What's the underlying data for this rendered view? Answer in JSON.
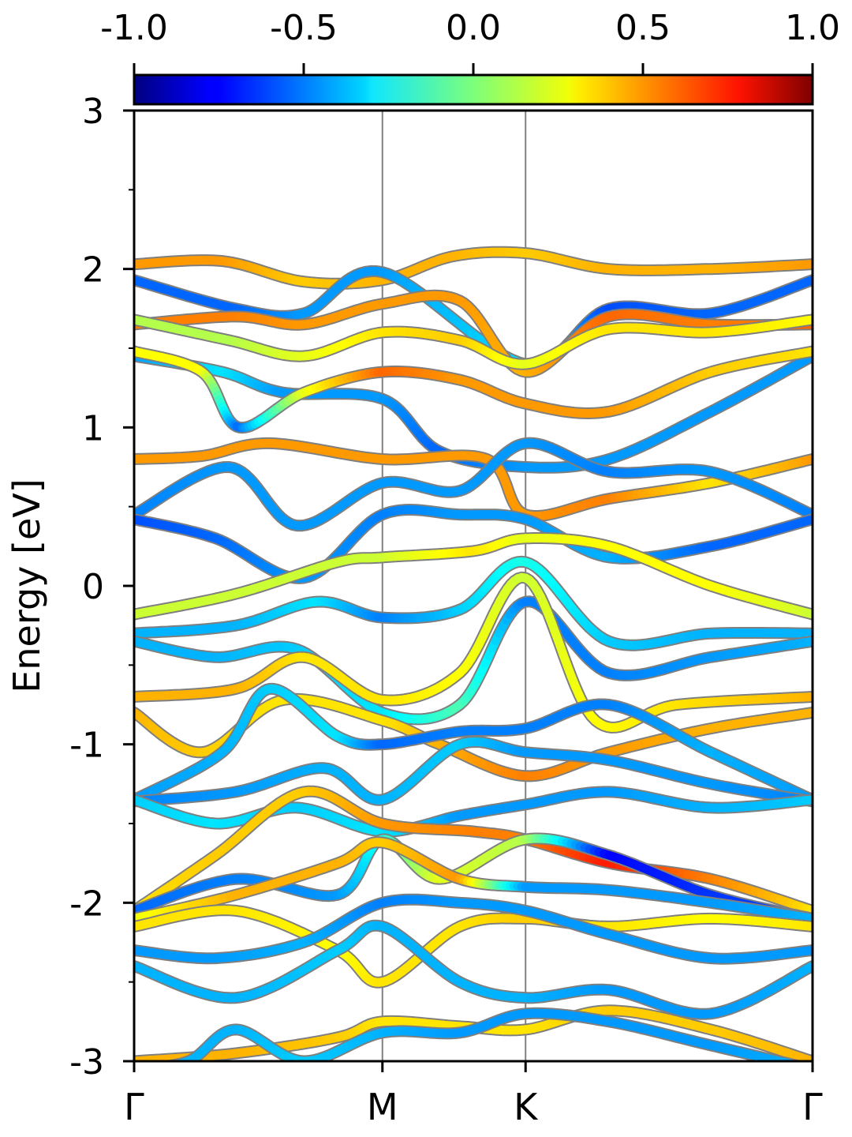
{
  "chart_data": {
    "type": "line",
    "title": "",
    "ylabel": "Energy [eV]",
    "xlabel": "",
    "ylim": [
      -3,
      3
    ],
    "yticks": [
      -3,
      -2,
      -1,
      0,
      1,
      2,
      3
    ],
    "yticks_labels": [
      "-3",
      "-2",
      "-1",
      "0",
      "1",
      "2",
      "3"
    ],
    "kpath": [
      {
        "label": "Γ",
        "pos": 0.0
      },
      {
        "label": "M",
        "pos": 0.366
      },
      {
        "label": "K",
        "pos": 0.577
      },
      {
        "label": "Γ",
        "pos": 1.0
      }
    ],
    "colorbar": {
      "colormap": "jet",
      "range": [
        -1.0,
        1.0
      ],
      "ticks": [
        "-1.0",
        "-0.5",
        "0.0",
        "0.5",
        "1.0"
      ]
    },
    "series": [
      {
        "points": [
          [
            0.0,
            2.03,
            0.45
          ],
          [
            0.13,
            2.05,
            0.45
          ],
          [
            0.25,
            1.92,
            0.35
          ],
          [
            0.366,
            1.93,
            0.4
          ],
          [
            0.47,
            2.08,
            0.4
          ],
          [
            0.577,
            2.1,
            0.35
          ],
          [
            0.7,
            2.0,
            0.4
          ],
          [
            0.85,
            2.0,
            0.4
          ],
          [
            1.0,
            2.03,
            0.45
          ]
        ]
      },
      {
        "points": [
          [
            0.0,
            1.93,
            -0.55
          ],
          [
            0.15,
            1.75,
            -0.55
          ],
          [
            0.25,
            1.72,
            -0.45
          ],
          [
            0.366,
            1.98,
            -0.45
          ],
          [
            0.577,
            1.4,
            -0.3
          ],
          [
            0.7,
            1.75,
            -0.6
          ],
          [
            0.85,
            1.72,
            -0.55
          ],
          [
            1.0,
            1.93,
            -0.55
          ]
        ]
      },
      {
        "points": [
          [
            0.0,
            1.65,
            0.5
          ],
          [
            0.15,
            1.7,
            0.5
          ],
          [
            0.25,
            1.65,
            0.45
          ],
          [
            0.366,
            1.78,
            0.45
          ],
          [
            0.48,
            1.8,
            0.45
          ],
          [
            0.577,
            1.35,
            0.4
          ],
          [
            0.7,
            1.7,
            0.55
          ],
          [
            0.85,
            1.65,
            0.5
          ],
          [
            1.0,
            1.65,
            0.55
          ]
        ]
      },
      {
        "points": [
          [
            0.0,
            1.68,
            0.1
          ],
          [
            0.14,
            1.55,
            0.1
          ],
          [
            0.25,
            1.45,
            0.2
          ],
          [
            0.366,
            1.6,
            0.3
          ],
          [
            0.48,
            1.55,
            0.35
          ],
          [
            0.577,
            1.4,
            0.2
          ],
          [
            0.7,
            1.62,
            0.3
          ],
          [
            0.85,
            1.6,
            0.3
          ],
          [
            1.0,
            1.68,
            0.25
          ]
        ]
      },
      {
        "points": [
          [
            0.0,
            1.45,
            -0.45
          ],
          [
            0.13,
            1.35,
            -0.3
          ],
          [
            0.22,
            1.22,
            -0.45
          ],
          [
            0.366,
            1.18,
            -0.45
          ],
          [
            0.45,
            0.85,
            -0.55
          ],
          [
            0.577,
            0.75,
            -0.45
          ],
          [
            0.7,
            0.8,
            -0.45
          ],
          [
            0.85,
            1.1,
            -0.45
          ],
          [
            1.0,
            1.45,
            -0.45
          ]
        ]
      },
      {
        "points": [
          [
            0.0,
            1.48,
            0.25
          ],
          [
            0.1,
            1.35,
            0.25
          ],
          [
            0.155,
            1.0,
            -0.55
          ],
          [
            0.25,
            1.22,
            0.2
          ],
          [
            0.366,
            1.35,
            0.55
          ],
          [
            0.48,
            1.3,
            0.45
          ],
          [
            0.577,
            1.15,
            0.45
          ],
          [
            0.7,
            1.1,
            0.45
          ],
          [
            0.85,
            1.35,
            0.35
          ],
          [
            1.0,
            1.48,
            0.3
          ]
        ]
      },
      {
        "points": [
          [
            0.0,
            0.8,
            0.45
          ],
          [
            0.1,
            0.82,
            0.45
          ],
          [
            0.2,
            0.9,
            0.45
          ],
          [
            0.366,
            0.8,
            0.45
          ],
          [
            0.52,
            0.8,
            0.45
          ],
          [
            0.577,
            0.45,
            0.45
          ],
          [
            0.7,
            0.55,
            0.5
          ],
          [
            0.85,
            0.65,
            0.3
          ],
          [
            1.0,
            0.8,
            0.45
          ]
        ]
      },
      {
        "points": [
          [
            0.0,
            0.45,
            -0.5
          ],
          [
            0.14,
            0.75,
            -0.45
          ],
          [
            0.24,
            0.38,
            -0.45
          ],
          [
            0.366,
            0.65,
            -0.45
          ],
          [
            0.48,
            0.6,
            -0.45
          ],
          [
            0.577,
            0.9,
            -0.45
          ],
          [
            0.7,
            0.72,
            -0.5
          ],
          [
            0.85,
            0.72,
            -0.45
          ],
          [
            1.0,
            0.45,
            -0.5
          ]
        ]
      },
      {
        "points": [
          [
            0.0,
            0.42,
            -0.6
          ],
          [
            0.12,
            0.3,
            -0.55
          ],
          [
            0.25,
            0.05,
            -0.45
          ],
          [
            0.366,
            0.45,
            -0.5
          ],
          [
            0.48,
            0.45,
            -0.45
          ],
          [
            0.577,
            0.42,
            -0.45
          ],
          [
            0.7,
            0.18,
            -0.4
          ],
          [
            0.85,
            0.25,
            -0.55
          ],
          [
            1.0,
            0.42,
            -0.55
          ]
        ]
      },
      {
        "points": [
          [
            0.0,
            -0.18,
            0.15
          ],
          [
            0.15,
            -0.05,
            0.15
          ],
          [
            0.3,
            0.15,
            0.15
          ],
          [
            0.366,
            0.18,
            0.15
          ],
          [
            0.5,
            0.22,
            0.3
          ],
          [
            0.577,
            0.3,
            0.2
          ],
          [
            0.7,
            0.25,
            0.25
          ],
          [
            0.85,
            0.0,
            0.25
          ],
          [
            1.0,
            -0.18,
            0.15
          ]
        ]
      },
      {
        "points": [
          [
            0.0,
            -0.3,
            -0.4
          ],
          [
            0.15,
            -0.25,
            -0.4
          ],
          [
            0.27,
            -0.1,
            -0.3
          ],
          [
            0.366,
            -0.2,
            -0.5
          ],
          [
            0.48,
            -0.15,
            -0.35
          ],
          [
            0.577,
            0.15,
            -0.2
          ],
          [
            0.7,
            -0.35,
            -0.35
          ],
          [
            0.85,
            -0.3,
            -0.4
          ],
          [
            1.0,
            -0.3,
            -0.4
          ]
        ]
      },
      {
        "points": [
          [
            0.0,
            -0.35,
            -0.4
          ],
          [
            0.12,
            -0.45,
            -0.4
          ],
          [
            0.24,
            -0.4,
            -0.35
          ],
          [
            0.366,
            -0.8,
            -0.3
          ],
          [
            0.48,
            -0.75,
            -0.1
          ],
          [
            0.577,
            -0.1,
            -0.5
          ],
          [
            0.7,
            -0.55,
            -0.5
          ],
          [
            0.85,
            -0.45,
            -0.45
          ],
          [
            1.0,
            -0.35,
            -0.4
          ]
        ]
      },
      {
        "points": [
          [
            0.0,
            -0.7,
            0.4
          ],
          [
            0.15,
            -0.65,
            0.4
          ],
          [
            0.25,
            -0.45,
            0.3
          ],
          [
            0.366,
            -0.72,
            0.3
          ],
          [
            0.48,
            -0.55,
            0.25
          ],
          [
            0.577,
            0.05,
            0.15
          ],
          [
            0.68,
            -0.85,
            0.25
          ],
          [
            0.8,
            -0.75,
            0.3
          ],
          [
            1.0,
            -0.7,
            0.4
          ]
        ]
      },
      {
        "points": [
          [
            0.0,
            -0.8,
            0.4
          ],
          [
            0.1,
            -1.05,
            0.35
          ],
          [
            0.22,
            -0.72,
            0.3
          ],
          [
            0.366,
            -0.85,
            0.3
          ],
          [
            0.45,
            -1.0,
            0.4
          ],
          [
            0.577,
            -1.2,
            0.5
          ],
          [
            0.7,
            -1.05,
            0.45
          ],
          [
            0.85,
            -0.9,
            0.4
          ],
          [
            1.0,
            -0.8,
            0.4
          ]
        ]
      },
      {
        "points": [
          [
            0.0,
            -1.35,
            -0.45
          ],
          [
            0.13,
            -1.05,
            -0.4
          ],
          [
            0.2,
            -0.65,
            -0.35
          ],
          [
            0.3,
            -0.95,
            -0.3
          ],
          [
            0.366,
            -1.0,
            -0.55
          ],
          [
            0.48,
            -0.92,
            -0.5
          ],
          [
            0.577,
            -0.9,
            -0.5
          ],
          [
            0.7,
            -0.75,
            -0.5
          ],
          [
            0.85,
            -1.05,
            -0.4
          ],
          [
            1.0,
            -1.35,
            -0.45
          ]
        ]
      },
      {
        "points": [
          [
            0.0,
            -1.36,
            -0.5
          ],
          [
            0.15,
            -1.3,
            -0.45
          ],
          [
            0.28,
            -1.15,
            -0.4
          ],
          [
            0.366,
            -1.35,
            -0.4
          ],
          [
            0.48,
            -1.0,
            -0.35
          ],
          [
            0.577,
            -1.05,
            -0.45
          ],
          [
            0.7,
            -1.1,
            -0.45
          ],
          [
            0.85,
            -1.25,
            -0.45
          ],
          [
            1.0,
            -1.36,
            -0.5
          ]
        ]
      },
      {
        "points": [
          [
            0.0,
            -1.35,
            -0.35
          ],
          [
            0.12,
            -1.5,
            -0.3
          ],
          [
            0.24,
            -1.4,
            -0.35
          ],
          [
            0.366,
            -1.55,
            -0.3
          ],
          [
            0.48,
            -1.45,
            -0.45
          ],
          [
            0.577,
            -1.38,
            -0.45
          ],
          [
            0.7,
            -1.3,
            -0.45
          ],
          [
            0.85,
            -1.4,
            -0.4
          ],
          [
            1.0,
            -1.35,
            -0.35
          ]
        ]
      },
      {
        "points": [
          [
            0.0,
            -2.05,
            0.3
          ],
          [
            0.12,
            -1.7,
            0.35
          ],
          [
            0.25,
            -1.3,
            0.35
          ],
          [
            0.366,
            -1.5,
            0.45
          ],
          [
            0.5,
            -1.55,
            0.5
          ],
          [
            0.577,
            -1.6,
            0.5
          ],
          [
            0.7,
            -1.75,
            0.7
          ],
          [
            0.85,
            -1.85,
            0.5
          ],
          [
            1.0,
            -2.05,
            0.3
          ]
        ]
      },
      {
        "points": [
          [
            0.0,
            -2.05,
            -0.55
          ],
          [
            0.15,
            -1.85,
            -0.5
          ],
          [
            0.3,
            -1.95,
            -0.45
          ],
          [
            0.366,
            -1.6,
            -0.2
          ],
          [
            0.45,
            -1.85,
            0.2
          ],
          [
            0.577,
            -1.6,
            0.1
          ],
          [
            0.7,
            -1.7,
            -0.75
          ],
          [
            0.85,
            -1.95,
            -0.65
          ],
          [
            1.0,
            -2.1,
            -0.6
          ]
        ]
      },
      {
        "points": [
          [
            0.0,
            -2.1,
            0.2
          ],
          [
            0.15,
            -1.95,
            0.4
          ],
          [
            0.3,
            -1.75,
            0.4
          ],
          [
            0.366,
            -1.62,
            0.35
          ],
          [
            0.48,
            -1.85,
            0.45
          ],
          [
            0.577,
            -1.9,
            -0.45
          ],
          [
            0.7,
            -1.92,
            -0.45
          ],
          [
            0.85,
            -2.0,
            -0.45
          ],
          [
            1.0,
            -2.1,
            -0.4
          ]
        ]
      },
      {
        "points": [
          [
            0.0,
            -2.15,
            0.3
          ],
          [
            0.15,
            -2.05,
            0.3
          ],
          [
            0.3,
            -2.3,
            0.25
          ],
          [
            0.366,
            -2.5,
            0.3
          ],
          [
            0.48,
            -2.15,
            0.3
          ],
          [
            0.577,
            -2.1,
            0.35
          ],
          [
            0.7,
            -2.15,
            0.3
          ],
          [
            0.85,
            -2.1,
            0.25
          ],
          [
            1.0,
            -2.15,
            0.3
          ]
        ]
      },
      {
        "points": [
          [
            0.0,
            -2.3,
            -0.45
          ],
          [
            0.12,
            -2.35,
            -0.45
          ],
          [
            0.25,
            -2.25,
            -0.4
          ],
          [
            0.366,
            -2.0,
            -0.5
          ],
          [
            0.48,
            -2.0,
            -0.45
          ],
          [
            0.577,
            -2.05,
            -0.45
          ],
          [
            0.7,
            -2.2,
            -0.45
          ],
          [
            0.85,
            -2.35,
            -0.45
          ],
          [
            1.0,
            -2.3,
            -0.45
          ]
        ]
      },
      {
        "points": [
          [
            0.0,
            -2.4,
            -0.4
          ],
          [
            0.15,
            -2.6,
            -0.4
          ],
          [
            0.3,
            -2.3,
            -0.35
          ],
          [
            0.366,
            -2.15,
            -0.4
          ],
          [
            0.48,
            -2.5,
            -0.4
          ],
          [
            0.577,
            -2.6,
            -0.4
          ],
          [
            0.7,
            -2.55,
            -0.45
          ],
          [
            0.85,
            -2.7,
            -0.45
          ],
          [
            1.0,
            -2.4,
            -0.4
          ]
        ]
      },
      {
        "points": [
          [
            0.0,
            -3.0,
            0.4
          ],
          [
            0.15,
            -2.95,
            0.4
          ],
          [
            0.3,
            -2.85,
            0.35
          ],
          [
            0.366,
            -2.75,
            0.3
          ],
          [
            0.48,
            -2.78,
            0.3
          ],
          [
            0.577,
            -2.8,
            0.3
          ],
          [
            0.7,
            -2.68,
            0.35
          ],
          [
            0.85,
            -2.8,
            0.35
          ],
          [
            1.0,
            -3.0,
            0.4
          ]
        ]
      },
      {
        "points": [
          [
            0.0,
            -3.05,
            -0.4
          ],
          [
            0.08,
            -3.0,
            -0.4
          ],
          [
            0.15,
            -2.8,
            -0.4
          ],
          [
            0.25,
            -3.0,
            -0.35
          ],
          [
            0.366,
            -2.82,
            -0.4
          ],
          [
            0.48,
            -2.82,
            -0.45
          ],
          [
            0.577,
            -2.7,
            -0.45
          ],
          [
            0.7,
            -2.75,
            -0.45
          ],
          [
            0.85,
            -2.9,
            -0.45
          ],
          [
            1.0,
            -3.05,
            -0.4
          ]
        ]
      }
    ]
  }
}
